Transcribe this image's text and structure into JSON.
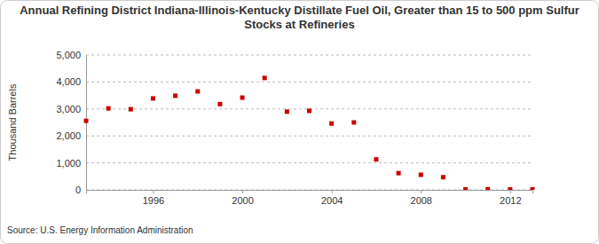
{
  "chart_data": {
    "type": "scatter",
    "title": "Annual Refining District Indiana-Illinois-Kentucky Distillate Fuel Oil, Greater than 15 to 500 ppm Sulfur Stocks at Refineries",
    "y_label": "Thousand Barrels",
    "source": "Source: U.S. Energy Information Administration",
    "x": [
      1993,
      1994,
      1995,
      1996,
      1997,
      1998,
      1999,
      2000,
      2001,
      2002,
      2003,
      2004,
      2005,
      2006,
      2007,
      2008,
      2009,
      2010,
      2011,
      2012,
      2013
    ],
    "values": [
      2560,
      3020,
      2990,
      3390,
      3490,
      3650,
      3180,
      3420,
      4150,
      2900,
      2930,
      2460,
      2500,
      1130,
      620,
      560,
      470,
      20,
      25,
      20,
      20
    ],
    "color": "#cc0000",
    "marker": "square",
    "xlim": [
      1993,
      2013
    ],
    "xticks": [
      1996,
      2000,
      2004,
      2008,
      2012
    ],
    "ylim": [
      0,
      5000
    ],
    "yticks": [
      0,
      {
        "value": 1000,
        "label": "1,000"
      },
      {
        "value": 2000,
        "label": "2,000"
      },
      {
        "value": 3000,
        "label": "3,000"
      },
      {
        "value": 4000,
        "label": "4,000"
      },
      {
        "value": 5000,
        "label": "5,000"
      }
    ],
    "grid": true
  }
}
